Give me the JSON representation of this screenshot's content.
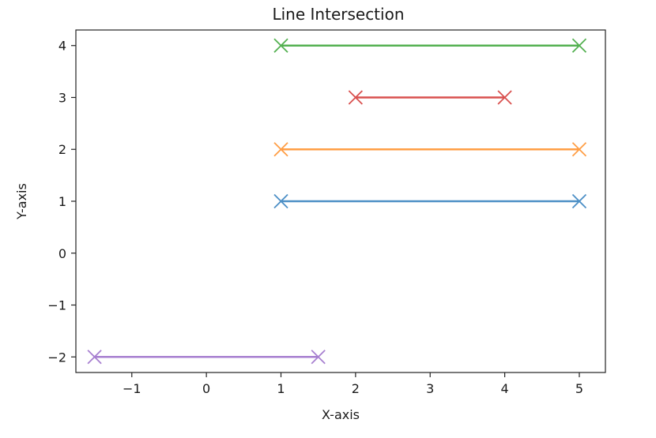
{
  "chart_data": {
    "type": "line",
    "title": "Line Intersection",
    "xlabel": "X-axis",
    "ylabel": "Y-axis",
    "xlim": [
      -1.75,
      5.35
    ],
    "ylim": [
      -2.3,
      4.3
    ],
    "xticks": [
      -1,
      0,
      1,
      2,
      3,
      4,
      5
    ],
    "yticks": [
      -2,
      -1,
      0,
      1,
      2,
      3,
      4
    ],
    "xtick_labels": [
      "−1",
      "0",
      "1",
      "2",
      "3",
      "4",
      "5"
    ],
    "ytick_labels": [
      "−2",
      "−1",
      "0",
      "1",
      "2",
      "3",
      "4"
    ],
    "grid": false,
    "marker": "x",
    "series": [
      {
        "x": [
          1,
          5
        ],
        "y": [
          1,
          1
        ],
        "color": "#4c8fc6"
      },
      {
        "x": [
          1,
          5
        ],
        "y": [
          2,
          2
        ],
        "color": "#ff9e45"
      },
      {
        "x": [
          2,
          4
        ],
        "y": [
          3,
          3
        ],
        "color": "#d9514f"
      },
      {
        "x": [
          1,
          5
        ],
        "y": [
          4,
          4
        ],
        "color": "#53b050"
      },
      {
        "x": [
          -1.5,
          1.5
        ],
        "y": [
          -2,
          -2
        ],
        "color": "#a77fd0"
      }
    ]
  }
}
